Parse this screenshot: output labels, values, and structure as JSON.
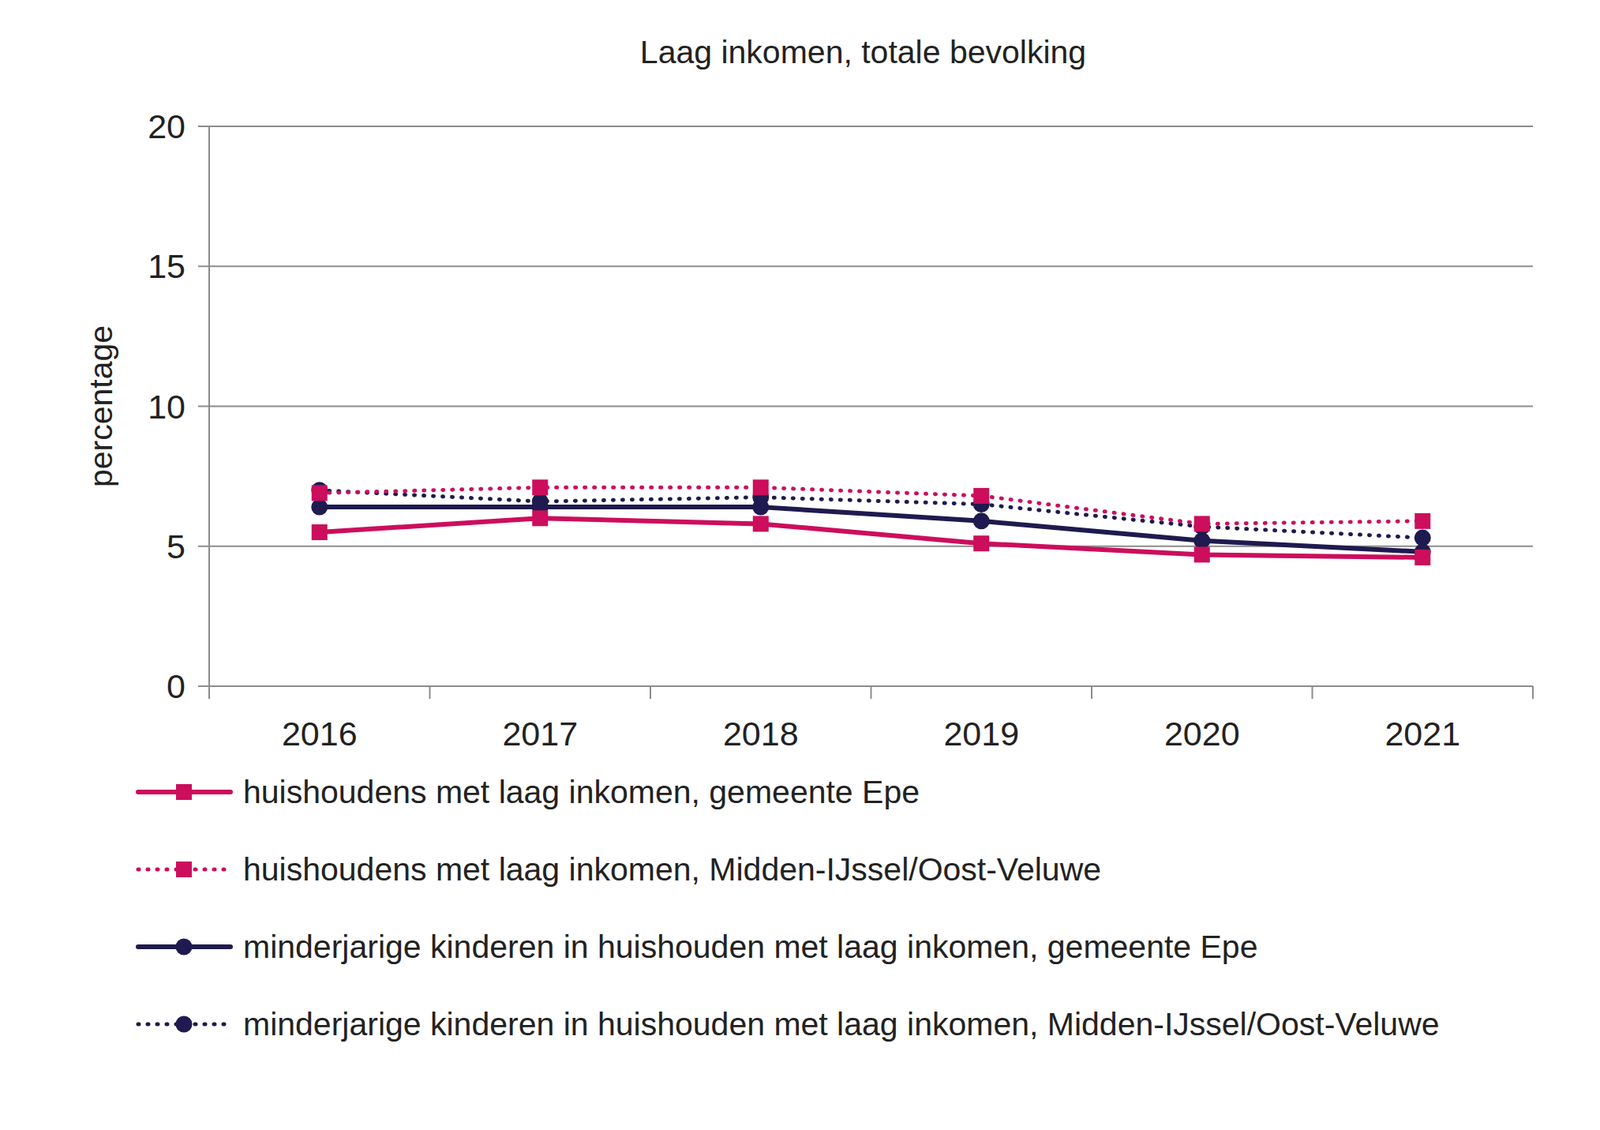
{
  "chart_data": {
    "type": "line",
    "title": "Laag inkomen, totale bevolking",
    "y_label": "percentage",
    "categories": [
      "2016",
      "2017",
      "2018",
      "2019",
      "2020",
      "2021"
    ],
    "series": [
      {
        "name": "huishoudens met laag inkomen, gemeente Epe",
        "color": "#cc0e5c",
        "line_style": "solid",
        "marker": "square",
        "values": [
          5.5,
          6.0,
          5.8,
          5.1,
          4.7,
          4.6
        ]
      },
      {
        "name": "huishoudens met laag inkomen, Midden-IJssel/Oost-Veluwe",
        "color": "#cc0e5c",
        "line_style": "dotted",
        "marker": "square",
        "values": [
          6.9,
          7.1,
          7.1,
          6.8,
          5.8,
          5.9
        ]
      },
      {
        "name": "minderjarige kinderen in huishouden met laag inkomen, gemeente Epe",
        "color": "#1f1a4f",
        "line_style": "solid",
        "marker": "circle",
        "values": [
          6.4,
          6.4,
          6.4,
          5.9,
          5.2,
          4.8
        ]
      },
      {
        "name": "minderjarige kinderen in huishouden met laag inkomen, Midden-IJssel/Oost-Veluwe",
        "color": "#1f1a4f",
        "line_style": "dotted",
        "marker": "circle",
        "values": [
          7.0,
          6.6,
          6.75,
          6.5,
          5.7,
          5.3
        ]
      }
    ],
    "ylim": [
      0,
      20
    ],
    "yticks": [
      0,
      5,
      10,
      15,
      20
    ],
    "grid": true,
    "legend": "bottom"
  }
}
